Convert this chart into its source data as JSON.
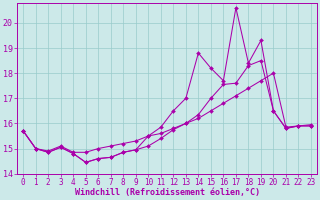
{
  "xlabel": "Windchill (Refroidissement éolien,°C)",
  "bg_color": "#cce9e9",
  "line_color": "#aa00aa",
  "grid_color": "#99cccc",
  "xlim": [
    -0.5,
    23.5
  ],
  "ylim": [
    14.0,
    20.8
  ],
  "yticks": [
    14,
    15,
    16,
    17,
    18,
    19,
    20
  ],
  "xticks": [
    0,
    1,
    2,
    3,
    4,
    5,
    6,
    7,
    8,
    9,
    10,
    11,
    12,
    13,
    14,
    15,
    16,
    17,
    18,
    19,
    20,
    21,
    22,
    23
  ],
  "line1_x": [
    0,
    1,
    2,
    3,
    4,
    5,
    6,
    7,
    8,
    9,
    10,
    11,
    12,
    13,
    14,
    15,
    16,
    17,
    18,
    19,
    20,
    21,
    22,
    23
  ],
  "line1_y": [
    15.7,
    15.0,
    14.9,
    15.1,
    14.85,
    14.85,
    15.0,
    15.1,
    15.2,
    15.3,
    15.5,
    15.6,
    15.8,
    16.0,
    16.2,
    16.5,
    16.8,
    17.1,
    17.4,
    17.7,
    18.0,
    15.85,
    15.9,
    15.95
  ],
  "line2_x": [
    0,
    1,
    2,
    3,
    4,
    5,
    6,
    7,
    8,
    9,
    10,
    11,
    12,
    13,
    14,
    15,
    16,
    17,
    18,
    19,
    20,
    21,
    22,
    23
  ],
  "line2_y": [
    15.7,
    15.0,
    14.85,
    15.05,
    14.8,
    14.45,
    14.6,
    14.65,
    14.85,
    14.95,
    15.1,
    15.4,
    15.75,
    16.0,
    16.35,
    17.0,
    17.55,
    17.6,
    18.3,
    18.5,
    16.5,
    15.8,
    15.9,
    15.9
  ],
  "line3_x": [
    0,
    1,
    2,
    3,
    4,
    5,
    6,
    7,
    8,
    9,
    10,
    11,
    12,
    13,
    14,
    15,
    16,
    17,
    18,
    19,
    20,
    21,
    22,
    23
  ],
  "line3_y": [
    15.7,
    15.0,
    14.85,
    15.05,
    14.8,
    14.45,
    14.6,
    14.65,
    14.85,
    14.95,
    15.5,
    15.85,
    16.5,
    17.0,
    18.8,
    18.2,
    17.7,
    20.6,
    18.4,
    19.3,
    16.5,
    15.8,
    15.9,
    15.9
  ],
  "tick_fontsize": 5.5,
  "label_fontsize": 6.0,
  "marker": "D",
  "markersize": 2.0,
  "linewidth": 0.75
}
